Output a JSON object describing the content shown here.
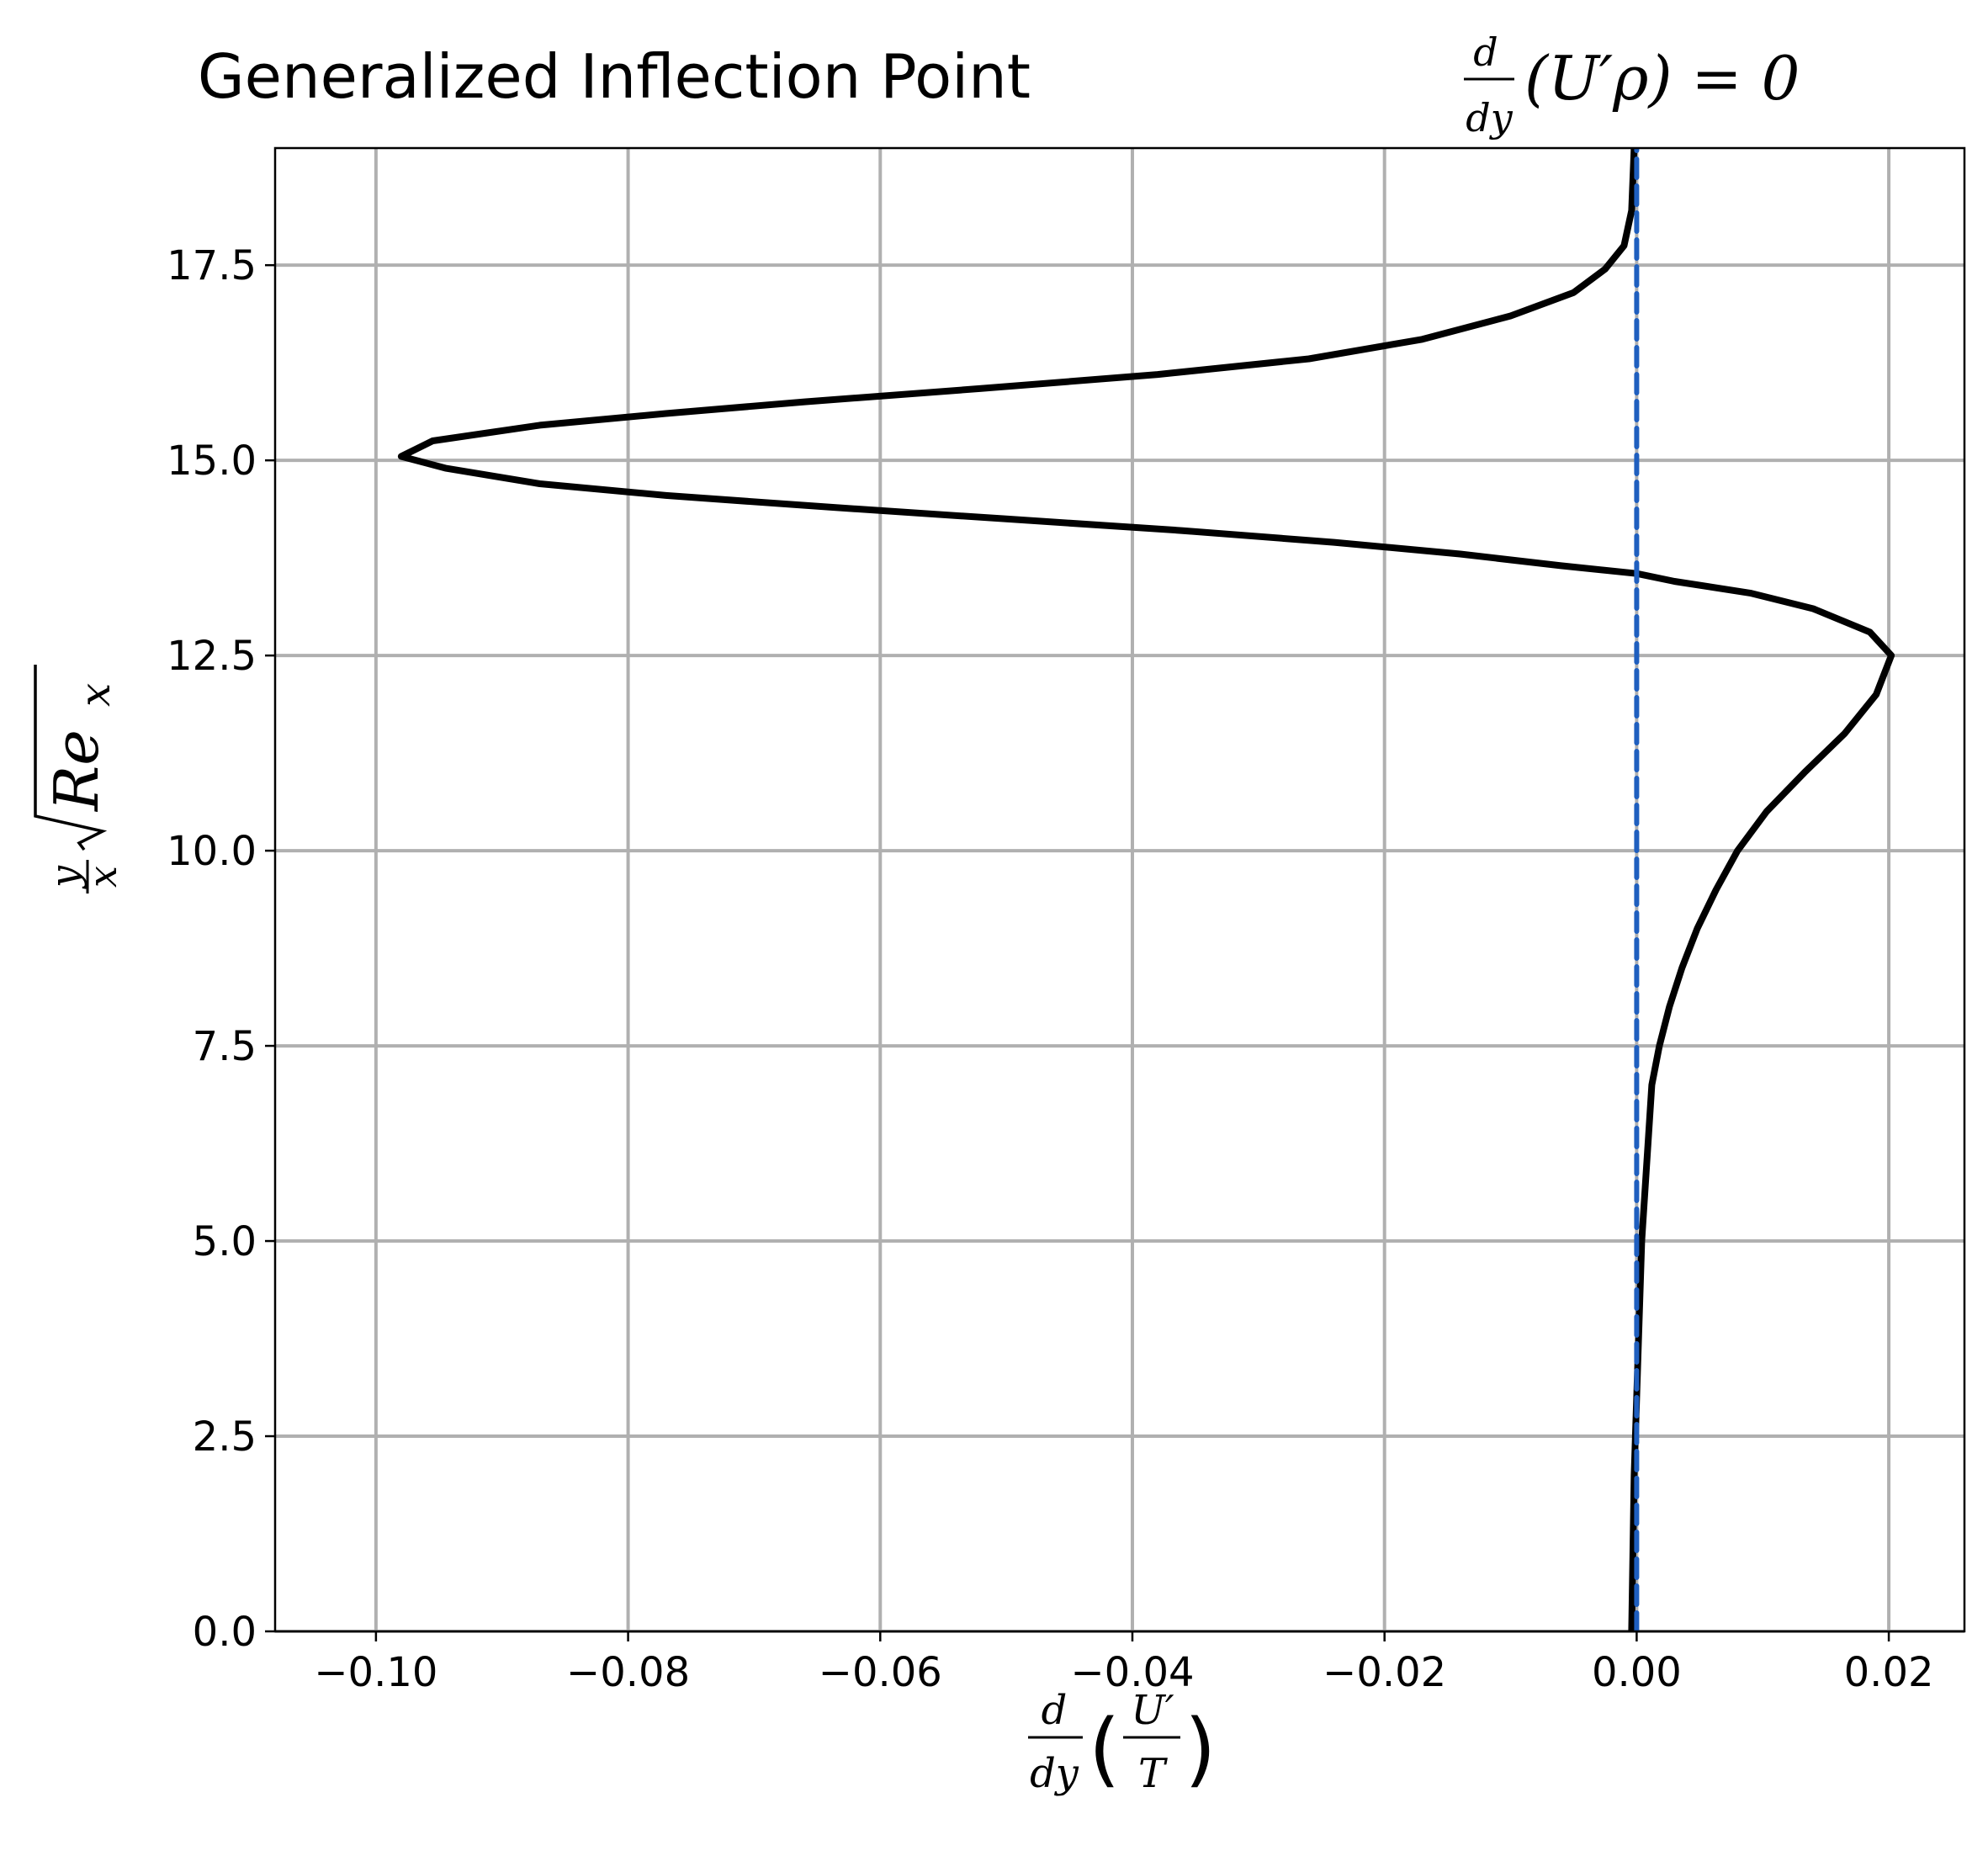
{
  "chart_data": {
    "type": "line",
    "title": {
      "text": "Generalized Inflection Point",
      "math": {
        "num": "d",
        "den": "dy",
        "body": "(U′ρ) = 0"
      }
    },
    "xlabel": {
      "num": "d",
      "den": "dy",
      "inner_num": "U′",
      "inner_den": "T"
    },
    "ylabel": {
      "frac_num": "y",
      "frac_den": "x",
      "radicand": "Re",
      "subscript": "x"
    },
    "xlim": [
      -0.108,
      0.026
    ],
    "ylim": [
      0,
      19
    ],
    "xticks": [
      -0.1,
      -0.08,
      -0.06,
      -0.04,
      -0.02,
      0.0,
      0.02
    ],
    "xtick_labels": [
      "−0.10",
      "−0.08",
      "−0.06",
      "−0.04",
      "−0.02",
      "0.00",
      "0.02"
    ],
    "yticks": [
      0.0,
      2.5,
      5.0,
      7.5,
      10.0,
      12.5,
      15.0,
      17.5
    ],
    "ytick_labels": [
      "0.0",
      "2.5",
      "5.0",
      "7.5",
      "10.0",
      "12.5",
      "15.0",
      "17.5"
    ],
    "grid": true,
    "colors": {
      "curve": "#000000",
      "zero_line": "#1f5fbf",
      "grid": "#b0b0b0"
    },
    "series": [
      {
        "style": "solid",
        "points": [
          [
            -0.0004,
            0.0
          ],
          [
            -0.0003,
            1.0
          ],
          [
            -0.0002,
            2.0
          ],
          [
            0.0,
            3.0
          ],
          [
            0.0002,
            4.0
          ],
          [
            0.0004,
            5.0
          ],
          [
            0.0008,
            6.0
          ],
          [
            0.0012,
            7.0
          ],
          [
            0.0018,
            7.5
          ],
          [
            0.0026,
            8.0
          ],
          [
            0.0036,
            8.5
          ],
          [
            0.0048,
            9.0
          ],
          [
            0.0063,
            9.5
          ],
          [
            0.008,
            10.0
          ],
          [
            0.0103,
            10.5
          ],
          [
            0.0133,
            11.0
          ],
          [
            0.0165,
            11.5
          ],
          [
            0.019,
            12.0
          ],
          [
            0.0202,
            12.5
          ],
          [
            0.0185,
            12.8
          ],
          [
            0.014,
            13.1
          ],
          [
            0.009,
            13.3
          ],
          [
            0.003,
            13.45
          ],
          [
            0.0,
            13.55
          ],
          [
            -0.006,
            13.65
          ],
          [
            -0.014,
            13.8
          ],
          [
            -0.024,
            13.95
          ],
          [
            -0.036,
            14.1
          ],
          [
            -0.05,
            14.25
          ],
          [
            -0.064,
            14.4
          ],
          [
            -0.077,
            14.55
          ],
          [
            -0.087,
            14.7
          ],
          [
            -0.0945,
            14.9
          ],
          [
            -0.098,
            15.05
          ],
          [
            -0.0955,
            15.25
          ],
          [
            -0.087,
            15.45
          ],
          [
            -0.077,
            15.6
          ],
          [
            -0.066,
            15.75
          ],
          [
            -0.052,
            15.92
          ],
          [
            -0.038,
            16.1
          ],
          [
            -0.026,
            16.3
          ],
          [
            -0.017,
            16.55
          ],
          [
            -0.01,
            16.85
          ],
          [
            -0.005,
            17.15
          ],
          [
            -0.0025,
            17.45
          ],
          [
            -0.001,
            17.75
          ],
          [
            -0.0004,
            18.2
          ],
          [
            -0.0002,
            19.0
          ]
        ]
      },
      {
        "style": "dashed",
        "points": [
          [
            0.0,
            0.0
          ],
          [
            0.0,
            19.0
          ]
        ]
      }
    ]
  }
}
